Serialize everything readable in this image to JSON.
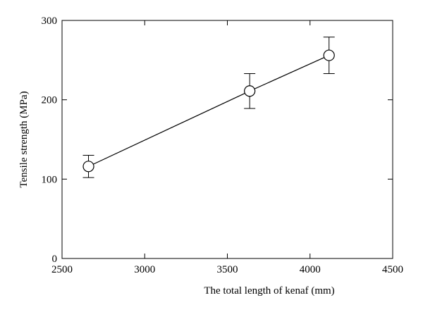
{
  "chart_data": {
    "type": "line",
    "xlabel": "The total length of kenaf (mm)",
    "ylabel": "Tensile strength (MPa)",
    "x": [
      2660,
      3635,
      4115
    ],
    "values": [
      116,
      211,
      256
    ],
    "errors": [
      14,
      22,
      23
    ],
    "color": "#000000",
    "xlim": [
      2500,
      4500
    ],
    "xticks": [
      2500,
      3000,
      3500,
      4000,
      4500
    ],
    "ylim": [
      0,
      300
    ],
    "yticks": [
      0,
      100,
      200,
      300
    ]
  }
}
